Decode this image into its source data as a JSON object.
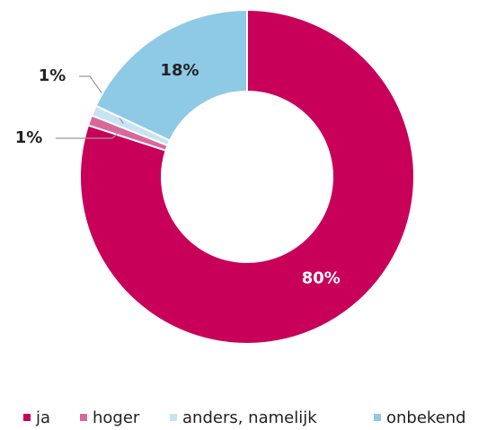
{
  "chart_data": {
    "type": "donut",
    "categories": [
      "ja",
      "hoger",
      "anders, namelijk",
      "onbekend"
    ],
    "values": [
      80,
      1,
      1,
      18
    ],
    "value_labels": [
      "80%",
      "1%",
      "1%",
      "18%"
    ],
    "colors": [
      "#c8005a",
      "#d9689a",
      "#c6e4f2",
      "#8ecae6"
    ],
    "legend": "bottom"
  }
}
